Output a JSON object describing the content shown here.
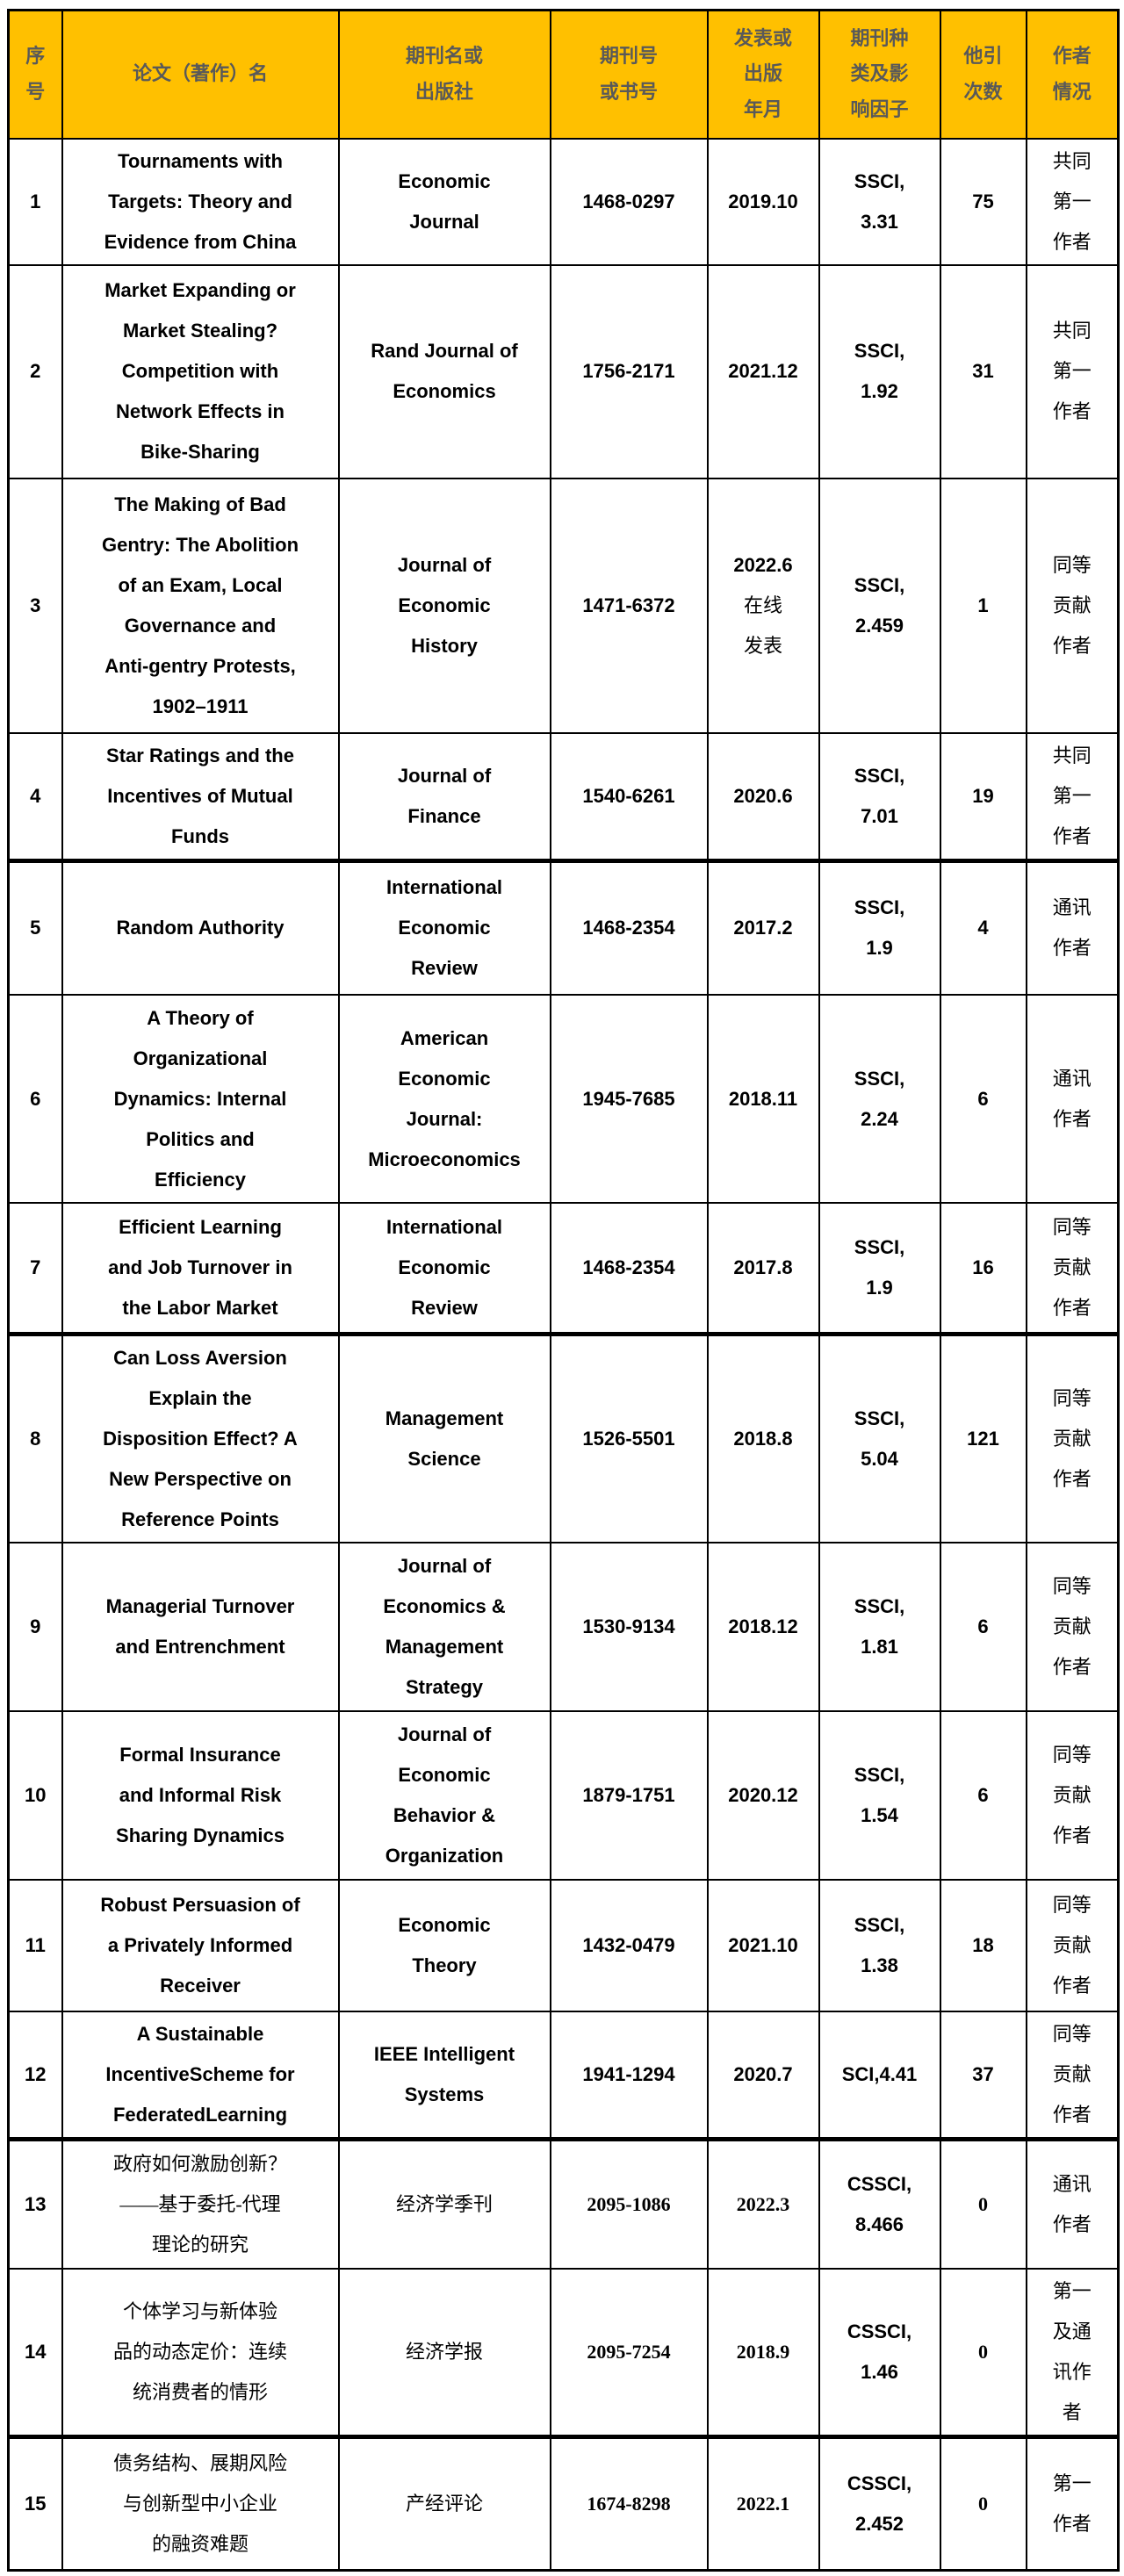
{
  "table": {
    "columns": [
      {
        "key": "no",
        "label": "序\n号"
      },
      {
        "key": "title",
        "label": "论文（著作）名"
      },
      {
        "key": "journal",
        "label": "期刊名或\n出版社"
      },
      {
        "key": "issn",
        "label": "期刊号\n或书号"
      },
      {
        "key": "date",
        "label": "发表或\n出版\n年月"
      },
      {
        "key": "index",
        "label": "期刊种\n类及影\n响因子"
      },
      {
        "key": "citations",
        "label": "他引\n次数"
      },
      {
        "key": "role",
        "label": "作者\n情况"
      }
    ],
    "rows": [
      {
        "no": "1",
        "title": "Tournaments with\nTargets: Theory and\nEvidence from China",
        "journal": "Economic\nJournal",
        "issn": "1468-0297",
        "date": "2019.10",
        "date_note": "",
        "index_impact": "SSCI,\n3.31",
        "citations": "75",
        "author_role": "共同\n第一\n作者"
      },
      {
        "no": "2",
        "title": "Market Expanding or\nMarket Stealing?\nCompetition with\nNetwork Effects in\nBike-Sharing",
        "journal": "Rand Journal of\nEconomics",
        "issn": "1756-2171",
        "date": "2021.12",
        "date_note": "",
        "index_impact": "SSCI,\n1.92",
        "citations": "31",
        "author_role": "共同\n第一\n作者"
      },
      {
        "no": "3",
        "title": "The Making of Bad\nGentry: The Abolition\nof an Exam, Local\nGovernance and\nAnti-gentry Protests,\n1902–1911",
        "journal": "Journal of\nEconomic\nHistory",
        "issn": "1471-6372",
        "date": "2022.6",
        "date_note": "在线\n发表",
        "index_impact": "SSCI,\n2.459",
        "citations": "1",
        "author_role": "同等\n贡献\n作者"
      },
      {
        "no": "4",
        "title": "Star Ratings and the\nIncentives of Mutual\nFunds",
        "journal": "Journal of\nFinance",
        "issn": "1540-6261",
        "date": "2020.6",
        "date_note": "",
        "index_impact": "SSCI,\n7.01",
        "citations": "19",
        "author_role": "共同\n第一\n作者"
      },
      {
        "no": "5",
        "title": "Random Authority",
        "journal": "International\nEconomic\nReview",
        "issn": "1468-2354",
        "date": "2017.2",
        "date_note": "",
        "index_impact": "SSCI,\n1.9",
        "citations": "4",
        "author_role": "通讯\n作者"
      },
      {
        "no": "6",
        "title": "A Theory of\nOrganizational\nDynamics: Internal\nPolitics and\nEfficiency",
        "journal": "American\nEconomic\nJournal:\nMicroeconomics",
        "issn": "1945-7685",
        "date": "2018.11",
        "date_note": "",
        "index_impact": "SSCI,\n2.24",
        "citations": "6",
        "author_role": "通讯\n作者"
      },
      {
        "no": "7",
        "title": "Efficient Learning\nand Job Turnover in\nthe Labor Market",
        "journal": "International\nEconomic\nReview",
        "issn": "1468-2354",
        "date": "2017.8",
        "date_note": "",
        "index_impact": "SSCI,\n1.9",
        "citations": "16",
        "author_role": "同等\n贡献\n作者"
      },
      {
        "no": "8",
        "title": "Can Loss Aversion\nExplain the\nDisposition Effect? A\nNew Perspective on\nReference Points",
        "journal": "Management\nScience",
        "issn": "1526-5501",
        "date": "2018.8",
        "date_note": "",
        "index_impact": "SSCI,\n5.04",
        "citations": "121",
        "author_role": "同等\n贡献\n作者"
      },
      {
        "no": "9",
        "title": "Managerial Turnover\nand Entrenchment",
        "journal": "Journal of\nEconomics &\nManagement\nStrategy",
        "issn": "1530-9134",
        "date": "2018.12",
        "date_note": "",
        "index_impact": "SSCI,\n1.81",
        "citations": "6",
        "author_role": "同等\n贡献\n作者"
      },
      {
        "no": "10",
        "title": "Formal Insurance\nand Informal Risk\nSharing Dynamics",
        "journal": "Journal of\nEconomic\nBehavior &\nOrganization",
        "issn": "1879-1751",
        "date": "2020.12",
        "date_note": "",
        "index_impact": "SSCI,\n1.54",
        "citations": "6",
        "author_role": "同等\n贡献\n作者"
      },
      {
        "no": "11",
        "title": "Robust Persuasion of\na Privately Informed\nReceiver",
        "journal": "Economic\nTheory",
        "issn": "1432-0479",
        "date": "2021.10",
        "date_note": "",
        "index_impact": "SSCI,\n1.38",
        "citations": "18",
        "author_role": "同等\n贡献\n作者"
      },
      {
        "no": "12",
        "title": "A Sustainable\nIncentiveScheme for\nFederatedLearning",
        "journal": "IEEE Intelligent\nSystems",
        "issn": "1941-1294",
        "date": "2020.7",
        "date_note": "",
        "index_impact": "SCI,4.41",
        "citations": "37",
        "author_role": "同等\n贡献\n作者"
      },
      {
        "no": "13",
        "title": "政府如何激励创新？\n——基于委托-代理\n理论的研究",
        "journal": "经济学季刊",
        "issn": "2095-1086",
        "date": "2022.3",
        "date_note": "",
        "index_impact": "CSSCI,\n8.466",
        "citations": "0",
        "author_role": "通讯\n作者"
      },
      {
        "no": "14",
        "title": "个体学习与新体验\n品的动态定价：连续\n统消费者的情形",
        "journal": "经济学报",
        "issn": "2095-7254",
        "date": "2018.9",
        "date_note": "",
        "index_impact": "CSSCI,\n1.46",
        "citations": "0",
        "author_role": "第一\n及通\n讯作\n者"
      },
      {
        "no": "15",
        "title": "债务结构、展期风险\n与创新型中小企业\n的融资难题",
        "journal": "产经评论",
        "issn": "1674-8298",
        "date": "2022.1",
        "date_note": "",
        "index_impact": "CSSCI,\n2.452",
        "citations": "0",
        "author_role": "第一\n作者"
      }
    ]
  }
}
